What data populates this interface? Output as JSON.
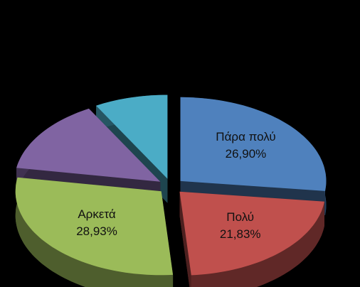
{
  "chart_data": {
    "type": "pie",
    "categories": [
      "Πάρα πολύ",
      "Πολύ",
      "Αρκετά",
      null,
      null
    ],
    "values": [
      26.9,
      21.83,
      28.93,
      14.2,
      8.14
    ],
    "value_labels": [
      "26,90%",
      "21,83%",
      "28,93%",
      null,
      null
    ],
    "colors": [
      "#4f81bd",
      "#c0504d",
      "#9bbb59",
      "#8064a2",
      "#4bacc6"
    ],
    "background": "#000000"
  }
}
